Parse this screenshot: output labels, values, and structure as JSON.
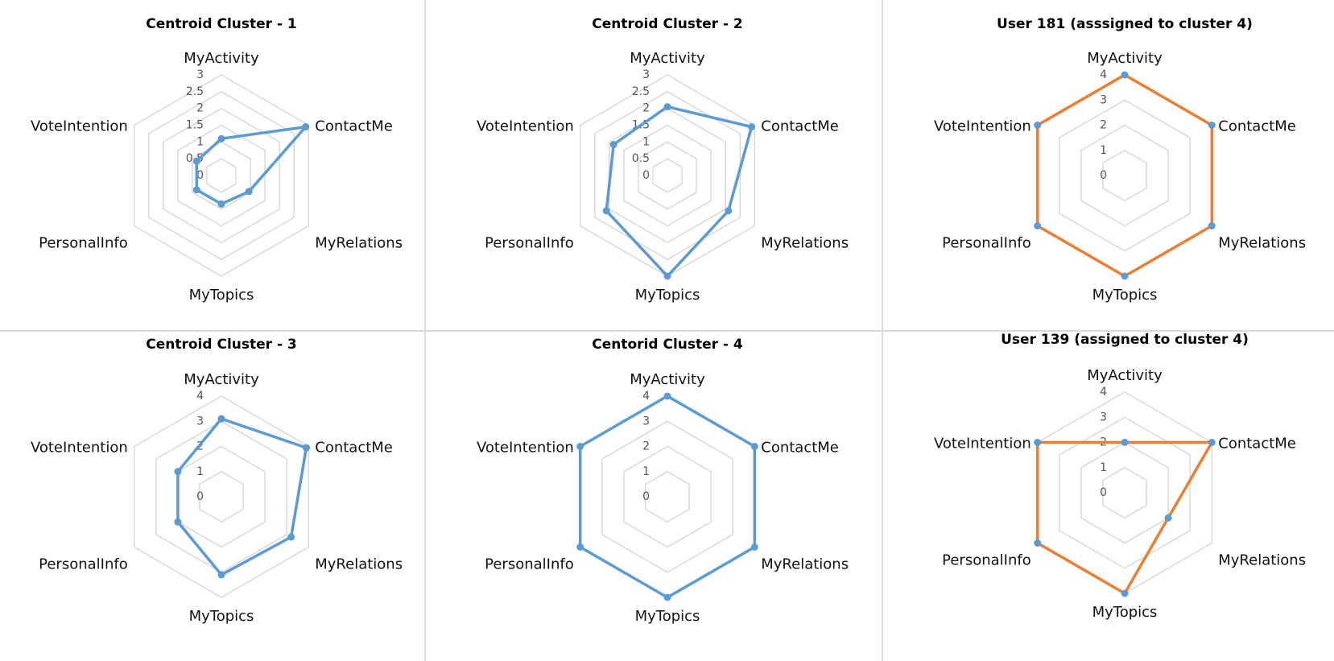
{
  "colors": {
    "series_blue": "#5b9bd5",
    "series_orange": "#ed7d31",
    "grid": "#d9d9d9",
    "divider": "#d9d9d9"
  },
  "chart_data": [
    {
      "type": "radar",
      "title": "Centroid Cluster - 1",
      "axes": [
        "MyActivity",
        "ContactMe",
        "MyRelations",
        "MyTopics",
        "PersonalInfo",
        "VoteIntention"
      ],
      "ticks": [
        "0",
        "0.5",
        "1",
        "1.5",
        "2",
        "2.5",
        "3"
      ],
      "rmax": 3,
      "series": [
        {
          "color": "#5b9bd5",
          "values": [
            1.1,
            2.9,
            0.95,
            0.85,
            0.85,
            0.85
          ]
        }
      ]
    },
    {
      "type": "radar",
      "title": "Centroid Cluster - 2",
      "axes": [
        "MyActivity",
        "ContactMe",
        "MyRelations",
        "MyTopics",
        "PersonalInfo",
        "VoteIntention"
      ],
      "ticks": [
        "0",
        "0.5",
        "1",
        "1.5",
        "2",
        "2.5",
        "3"
      ],
      "rmax": 3,
      "series": [
        {
          "color": "#5b9bd5",
          "values": [
            2.05,
            2.9,
            2.1,
            3.0,
            2.1,
            1.85
          ]
        }
      ]
    },
    {
      "type": "radar",
      "title": "User 181 (asssigned to cluster 4)",
      "axes": [
        "MyActivity",
        "ContactMe",
        "MyRelations",
        "MyTopics",
        "PersonalInfo",
        "VoteIntention"
      ],
      "ticks": [
        "0",
        "1",
        "2",
        "3",
        "4"
      ],
      "rmax": 4,
      "series": [
        {
          "color": "#ed7d31",
          "values": [
            4,
            4,
            4,
            4,
            4,
            4
          ]
        }
      ]
    },
    {
      "type": "radar",
      "title": "Centroid Cluster - 3",
      "axes": [
        "MyActivity",
        "ContactMe",
        "MyRelations",
        "MyTopics",
        "PersonalInfo",
        "VoteIntention"
      ],
      "ticks": [
        "0",
        "1",
        "2",
        "3",
        "4"
      ],
      "rmax": 4,
      "series": [
        {
          "color": "#5b9bd5",
          "values": [
            3.1,
            3.9,
            3.2,
            3.1,
            2.0,
            2.0
          ]
        }
      ]
    },
    {
      "type": "radar",
      "title": "Centorid Cluster - 4",
      "axes": [
        "MyActivity",
        "ContactMe",
        "MyRelations",
        "MyTopics",
        "PersonalInfo",
        "VoteIntention"
      ],
      "ticks": [
        "0",
        "1",
        "2",
        "3",
        "4"
      ],
      "rmax": 4,
      "series": [
        {
          "color": "#5b9bd5",
          "values": [
            4,
            4,
            4,
            4,
            4,
            4
          ]
        }
      ]
    },
    {
      "type": "radar",
      "title": "User 139 (assigned to cluster 4)",
      "axes": [
        "MyActivity",
        "ContactMe",
        "MyRelations",
        "MyTopics",
        "PersonalInfo",
        "VoteIntention"
      ],
      "ticks": [
        "0",
        "1",
        "2",
        "3",
        "4"
      ],
      "rmax": 4,
      "series": [
        {
          "color": "#ed7d31",
          "values": [
            2,
            4,
            2,
            4,
            4,
            4
          ]
        }
      ]
    }
  ]
}
